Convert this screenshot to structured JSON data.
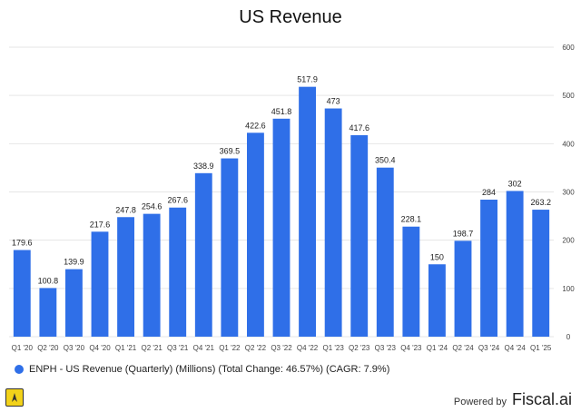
{
  "chart_data": {
    "type": "bar",
    "title": "US Revenue",
    "categories": [
      "Q1 '20",
      "Q2 '20",
      "Q3 '20",
      "Q4 '20",
      "Q1 '21",
      "Q2 '21",
      "Q3 '21",
      "Q4 '21",
      "Q1 '22",
      "Q2 '22",
      "Q3 '22",
      "Q4 '22",
      "Q1 '23",
      "Q2 '23",
      "Q3 '23",
      "Q4 '23",
      "Q1 '24",
      "Q2 '24",
      "Q3 '24",
      "Q4 '24",
      "Q1 '25"
    ],
    "values": [
      179.6,
      100.8,
      139.9,
      217.6,
      247.8,
      254.6,
      267.6,
      338.9,
      369.5,
      422.6,
      451.8,
      517.9,
      473,
      417.6,
      350.4,
      228.1,
      150,
      198.7,
      284,
      302,
      263.2
    ],
    "series_name": "ENPH - US Revenue (Quarterly) (Millions) (Total Change: 46.57%) (CAGR: 7.9%)",
    "ylim": [
      0,
      600
    ],
    "yticks": [
      0,
      100,
      200,
      300,
      400,
      500,
      600
    ],
    "y_axis_position": "right",
    "grid": true,
    "legend_position": "bottom-left",
    "bar_color": "#2f6fe8"
  },
  "footer": {
    "powered_label": "Powered by",
    "brand": "Fiscal.ai"
  }
}
